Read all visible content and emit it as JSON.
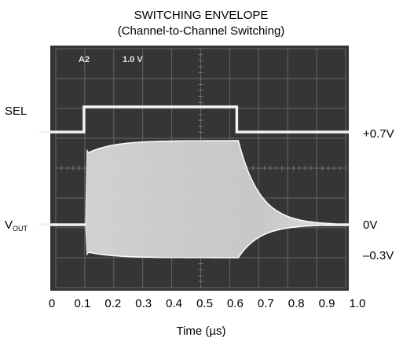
{
  "chart_data": {
    "type": "line",
    "title": "SWITCHING ENVELOPE",
    "subtitle": "(Channel-to-Channel Switching)",
    "xlabel": "Time (µs)",
    "ylabel": "",
    "xlim": [
      0,
      1.0
    ],
    "x_ticks": [
      "0",
      "0.1",
      "0.2",
      "0.3",
      "0.4",
      "0.5",
      "0.6",
      "0.7",
      "0.8",
      "0.9",
      "1.0"
    ],
    "grid": true,
    "scope_annotation": {
      "channel": "A2",
      "scale": "1.0 V"
    },
    "left_labels": {
      "sel": "SEL",
      "vout_main": "V",
      "vout_sub": "OUT"
    },
    "right_labels": {
      "upper": "+0.7V",
      "zero": "0V",
      "lower": "–0.3V"
    },
    "series": [
      {
        "name": "SEL",
        "x": [
          0,
          0.1,
          0.1,
          0.6,
          0.6,
          1.0
        ],
        "state": [
          0,
          0,
          1,
          1,
          0,
          0
        ]
      },
      {
        "name": "VOUT",
        "x": [
          0,
          0.1,
          0.11,
          0.3,
          0.6,
          0.7,
          0.8,
          0.9,
          1.0
        ],
        "upper_v": [
          0,
          0,
          0.6,
          0.7,
          0.7,
          0.2,
          0.05,
          0,
          0
        ],
        "lower_v": [
          0,
          0,
          -0.25,
          -0.3,
          -0.3,
          -0.1,
          -0.02,
          0,
          0
        ]
      }
    ],
    "colors": {
      "screen": "#353535",
      "trace": "#f2f2f2",
      "grid": "#7a7a7a",
      "envelope": "#d2d2d2"
    }
  }
}
